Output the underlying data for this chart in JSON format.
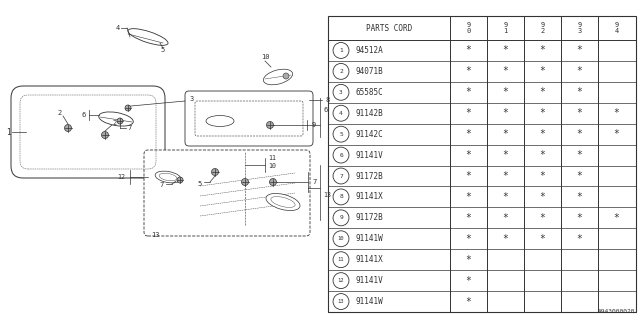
{
  "diagram_id": "A943000020",
  "bg_color": "#ffffff",
  "line_color": "#333333",
  "rows": [
    {
      "num": "1",
      "code": "94512A",
      "stars": [
        1,
        1,
        1,
        1,
        0
      ]
    },
    {
      "num": "2",
      "code": "94071B",
      "stars": [
        1,
        1,
        1,
        1,
        0
      ]
    },
    {
      "num": "3",
      "code": "65585C",
      "stars": [
        1,
        1,
        1,
        1,
        0
      ]
    },
    {
      "num": "4",
      "code": "91142B",
      "stars": [
        1,
        1,
        1,
        1,
        1
      ]
    },
    {
      "num": "5",
      "code": "91142C",
      "stars": [
        1,
        1,
        1,
        1,
        1
      ]
    },
    {
      "num": "6",
      "code": "91141V",
      "stars": [
        1,
        1,
        1,
        1,
        0
      ]
    },
    {
      "num": "7",
      "code": "91172B",
      "stars": [
        1,
        1,
        1,
        1,
        0
      ]
    },
    {
      "num": "8",
      "code": "91141X",
      "stars": [
        1,
        1,
        1,
        1,
        0
      ]
    },
    {
      "num": "9",
      "code": "91172B",
      "stars": [
        1,
        1,
        1,
        1,
        1
      ]
    },
    {
      "num": "10",
      "code": "91141W",
      "stars": [
        1,
        1,
        1,
        1,
        0
      ]
    },
    {
      "num": "11",
      "code": "91141X",
      "stars": [
        1,
        0,
        0,
        0,
        0
      ]
    },
    {
      "num": "12",
      "code": "91141V",
      "stars": [
        1,
        0,
        0,
        0,
        0
      ]
    },
    {
      "num": "13",
      "code": "91141W",
      "stars": [
        1,
        0,
        0,
        0,
        0
      ]
    }
  ]
}
